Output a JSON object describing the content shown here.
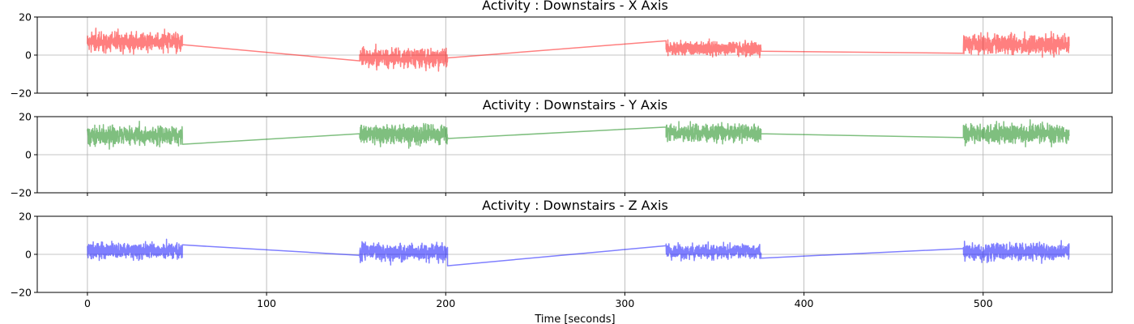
{
  "chart_data": [
    {
      "type": "line",
      "title": "Activity : Downstairs - X Axis",
      "color": "#ff0000",
      "ylim": [
        -20,
        20
      ],
      "y_ticks": [
        -20,
        0,
        20
      ],
      "xlim": [
        -28,
        572
      ],
      "x_ticks": [
        0,
        100,
        200,
        300,
        400,
        500
      ],
      "grid": true,
      "segments": [
        {
          "x": [
            0,
            53
          ],
          "mean": 7,
          "noise": 3.5
        },
        {
          "x": [
            152,
            201
          ],
          "mean": -1.5,
          "noise": 3.5
        },
        {
          "x": [
            323,
            376
          ],
          "mean": 3.5,
          "noise": 2.5
        },
        {
          "x": [
            489,
            548
          ],
          "mean": 5.5,
          "noise": 3.5
        }
      ],
      "connectors": [
        {
          "x": [
            53,
            152
          ],
          "y": [
            5.5,
            -3
          ]
        },
        {
          "x": [
            201,
            323
          ],
          "y": [
            -1.5,
            7.5
          ]
        },
        {
          "x": [
            376,
            489
          ],
          "y": [
            2,
            1
          ]
        }
      ]
    },
    {
      "type": "line",
      "title": "Activity : Downstairs - Y Axis",
      "color": "#008000",
      "ylim": [
        -20,
        20
      ],
      "y_ticks": [
        -20,
        0,
        20
      ],
      "xlim": [
        -28,
        572
      ],
      "x_ticks": [
        0,
        100,
        200,
        300,
        400,
        500
      ],
      "grid": true,
      "segments": [
        {
          "x": [
            0,
            53
          ],
          "mean": 10,
          "noise": 3.5
        },
        {
          "x": [
            152,
            201
          ],
          "mean": 10.5,
          "noise": 3.5
        },
        {
          "x": [
            323,
            376
          ],
          "mean": 11.5,
          "noise": 3
        },
        {
          "x": [
            489,
            548
          ],
          "mean": 11,
          "noise": 3.5
        }
      ],
      "connectors": [
        {
          "x": [
            53,
            152
          ],
          "y": [
            5.5,
            11
          ]
        },
        {
          "x": [
            201,
            323
          ],
          "y": [
            8.5,
            14.5
          ]
        },
        {
          "x": [
            376,
            489
          ],
          "y": [
            11,
            9
          ]
        }
      ]
    },
    {
      "type": "line",
      "title": "Activity : Downstairs - Z Axis",
      "color": "#0000ff",
      "ylim": [
        -20,
        20
      ],
      "y_ticks": [
        -20,
        0,
        20
      ],
      "xlim": [
        -28,
        572
      ],
      "x_ticks": [
        0,
        100,
        200,
        300,
        400,
        500
      ],
      "xlabel": "Time [seconds]",
      "grid": true,
      "segments": [
        {
          "x": [
            0,
            53
          ],
          "mean": 2,
          "noise": 3
        },
        {
          "x": [
            152,
            201
          ],
          "mean": 1,
          "noise": 3.2
        },
        {
          "x": [
            323,
            376
          ],
          "mean": 1.5,
          "noise": 2.5
        },
        {
          "x": [
            489,
            548
          ],
          "mean": 1.5,
          "noise": 3
        }
      ],
      "connectors": [
        {
          "x": [
            53,
            152
          ],
          "y": [
            5,
            -0.5
          ]
        },
        {
          "x": [
            201,
            323
          ],
          "y": [
            -6,
            4.5
          ]
        },
        {
          "x": [
            376,
            489
          ],
          "y": [
            -2,
            3
          ]
        }
      ]
    }
  ]
}
